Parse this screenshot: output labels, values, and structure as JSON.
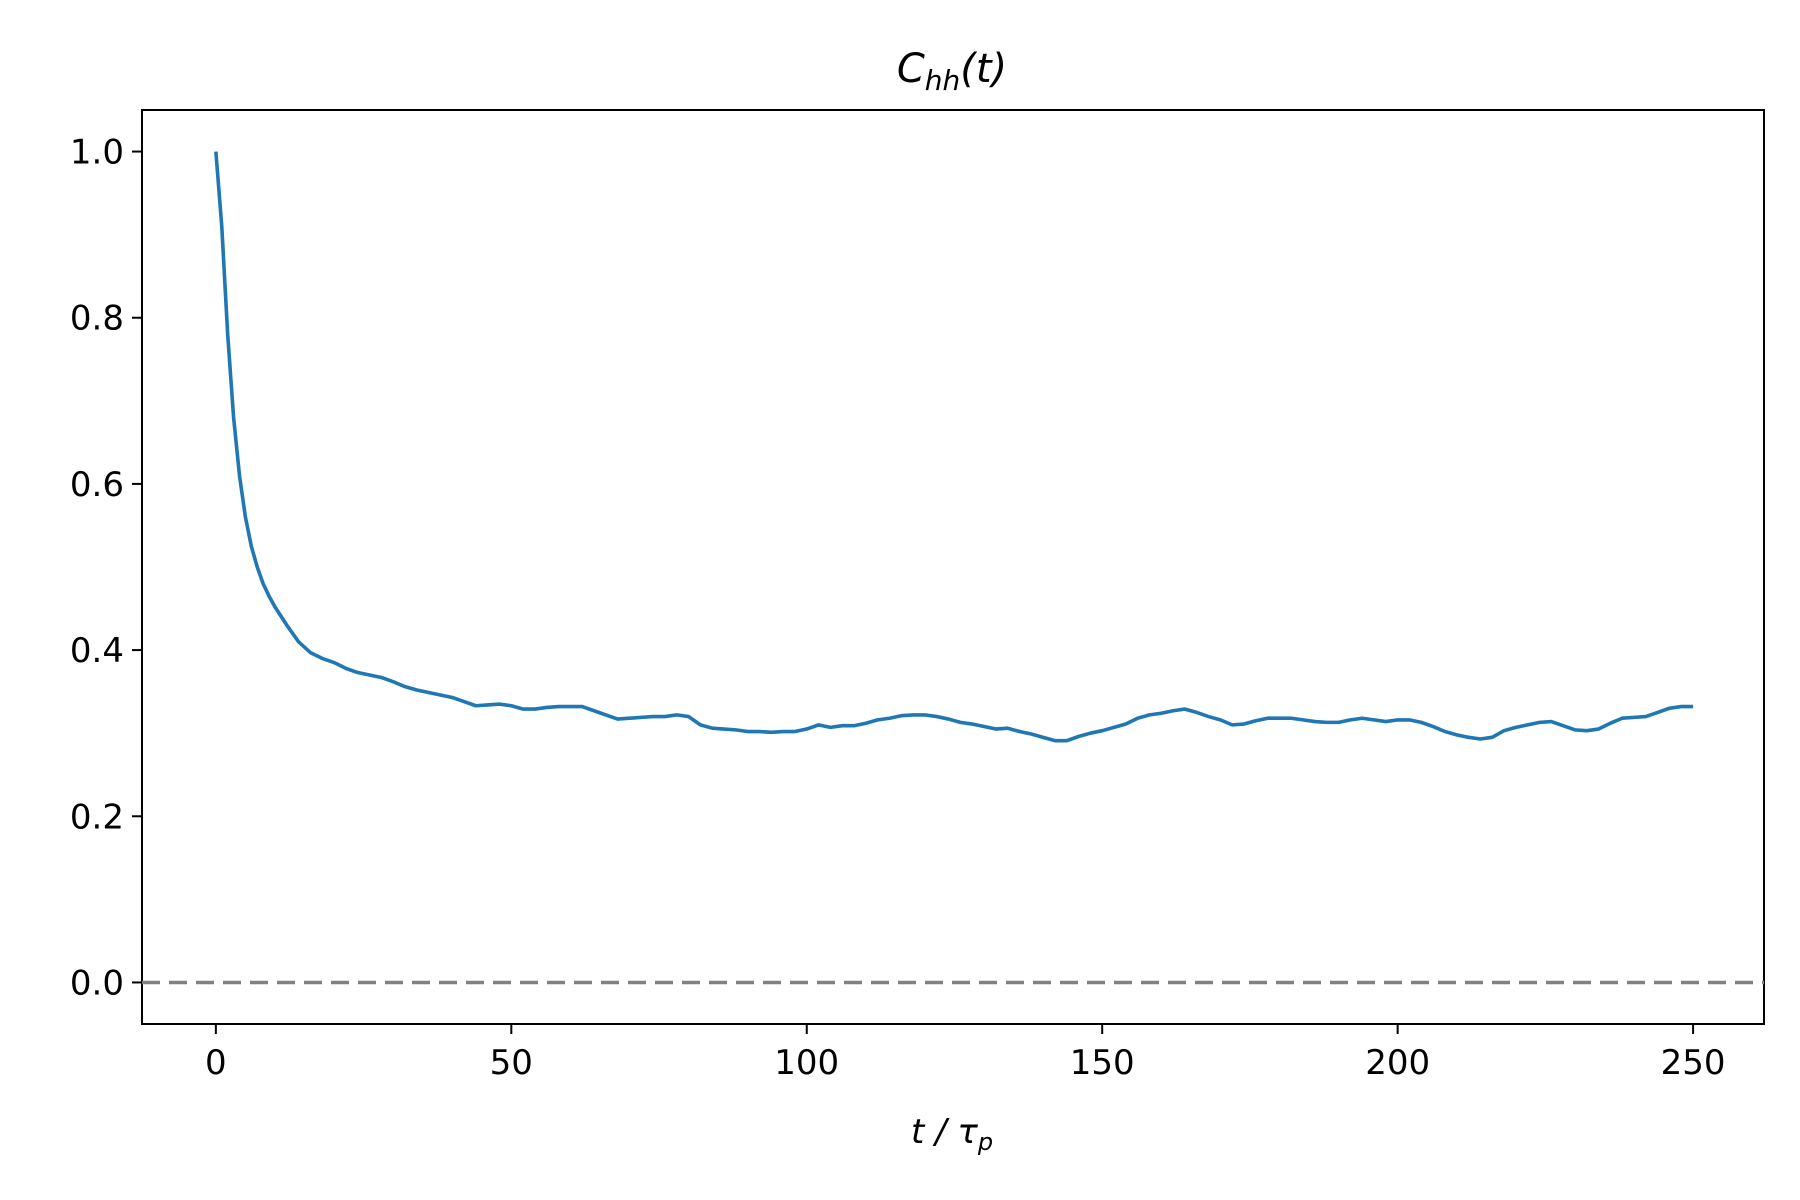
{
  "chart_data": {
    "type": "line",
    "title": "C",
    "title_subscript": "hh",
    "title_suffix": "(t)",
    "xlabel": "t / τ",
    "xlabel_subscript": "p",
    "ylabel": "",
    "xlim": [
      -12.5,
      262
    ],
    "ylim": [
      -0.05,
      1.05
    ],
    "x_ticks": [
      0,
      50,
      100,
      150,
      200,
      250
    ],
    "x_tick_labels": [
      "0",
      "50",
      "100",
      "150",
      "200",
      "250"
    ],
    "y_ticks": [
      0.0,
      0.2,
      0.4,
      0.6,
      0.8,
      1.0
    ],
    "y_tick_labels": [
      "0.0",
      "0.2",
      "0.4",
      "0.6",
      "0.8",
      "1.0"
    ],
    "grid": false,
    "reference_line": {
      "y": 0.0,
      "style": "dashed",
      "color": "#808080"
    },
    "series": [
      {
        "color": "#1f77b4",
        "x": [
          0,
          1,
          2,
          3,
          4,
          5,
          6,
          7,
          8,
          9,
          10,
          12,
          14,
          16,
          18,
          20,
          22,
          24,
          26,
          28,
          30,
          32,
          34,
          36,
          38,
          40,
          42,
          44,
          46,
          48,
          50,
          52,
          54,
          56,
          58,
          60,
          62,
          64,
          66,
          68,
          70,
          72,
          74,
          76,
          78,
          80,
          82,
          84,
          86,
          88,
          90,
          92,
          94,
          96,
          98,
          100,
          102,
          104,
          106,
          108,
          110,
          112,
          114,
          116,
          118,
          120,
          122,
          124,
          126,
          128,
          130,
          132,
          134,
          136,
          138,
          140,
          142,
          144,
          146,
          148,
          150,
          152,
          154,
          156,
          158,
          160,
          162,
          164,
          166,
          168,
          170,
          172,
          174,
          176,
          178,
          180,
          182,
          184,
          186,
          188,
          190,
          192,
          194,
          196,
          198,
          200,
          202,
          204,
          206,
          208,
          210,
          212,
          214,
          216,
          218,
          220,
          222,
          224,
          226,
          228,
          230,
          232,
          234,
          236,
          238,
          240,
          242,
          244,
          246,
          248,
          250
        ],
        "y": [
          1.0,
          0.91,
          0.78,
          0.68,
          0.61,
          0.56,
          0.525,
          0.5,
          0.48,
          0.465,
          0.452,
          0.43,
          0.41,
          0.397,
          0.39,
          0.385,
          0.378,
          0.373,
          0.37,
          0.367,
          0.362,
          0.356,
          0.352,
          0.349,
          0.346,
          0.343,
          0.338,
          0.333,
          0.334,
          0.335,
          0.333,
          0.329,
          0.329,
          0.331,
          0.332,
          0.332,
          0.332,
          0.327,
          0.322,
          0.317,
          0.318,
          0.319,
          0.32,
          0.32,
          0.322,
          0.32,
          0.31,
          0.306,
          0.305,
          0.304,
          0.302,
          0.302,
          0.301,
          0.302,
          0.302,
          0.305,
          0.31,
          0.307,
          0.309,
          0.309,
          0.312,
          0.316,
          0.318,
          0.321,
          0.322,
          0.322,
          0.32,
          0.317,
          0.313,
          0.311,
          0.308,
          0.305,
          0.306,
          0.302,
          0.299,
          0.295,
          0.291,
          0.291,
          0.296,
          0.3,
          0.303,
          0.307,
          0.311,
          0.318,
          0.322,
          0.324,
          0.327,
          0.329,
          0.325,
          0.32,
          0.316,
          0.31,
          0.311,
          0.315,
          0.318,
          0.318,
          0.318,
          0.316,
          0.314,
          0.313,
          0.313,
          0.316,
          0.318,
          0.316,
          0.314,
          0.316,
          0.316,
          0.313,
          0.308,
          0.302,
          0.298,
          0.295,
          0.293,
          0.295,
          0.303,
          0.307,
          0.31,
          0.313,
          0.314,
          0.309,
          0.304,
          0.303,
          0.305,
          0.312,
          0.318,
          0.319,
          0.32,
          0.325,
          0.33,
          0.332,
          0.332
        ]
      }
    ]
  },
  "colors": {
    "line": "#1f77b4",
    "reference": "#808080",
    "axes": "#000000",
    "background": "#ffffff"
  }
}
